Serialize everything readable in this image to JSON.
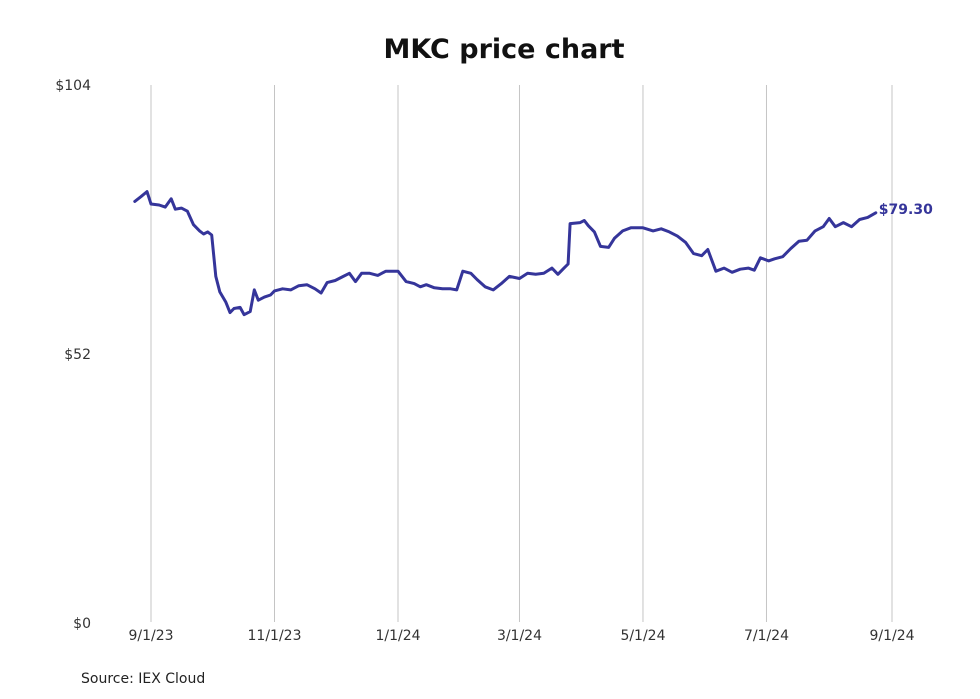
{
  "chart_data": {
    "type": "line",
    "title": "MKC price chart",
    "source": "Source: IEX Cloud",
    "y_ticks": [
      {
        "value": 104,
        "label": "$104"
      },
      {
        "value": 52,
        "label": "$52"
      },
      {
        "value": 0,
        "label": "$0"
      }
    ],
    "x_ticks": [
      {
        "date": "2023-09-01",
        "label": "9/1/23"
      },
      {
        "date": "2023-11-01",
        "label": "11/1/23"
      },
      {
        "date": "2024-01-01",
        "label": "1/1/24"
      },
      {
        "date": "2024-03-01",
        "label": "3/1/24"
      },
      {
        "date": "2024-05-01",
        "label": "5/1/24"
      },
      {
        "date": "2024-07-01",
        "label": "7/1/24"
      },
      {
        "date": "2024-09-01",
        "label": "9/1/24"
      }
    ],
    "ylim": [
      0,
      104
    ],
    "xlim": [
      "2023-08-23",
      "2024-09-03"
    ],
    "grid": "vertical",
    "line_color": "#35359a",
    "end_label": "$79.30",
    "series": [
      {
        "values": [
          [
            "2023-08-24",
            81.5
          ],
          [
            "2023-08-27",
            82.4
          ],
          [
            "2023-08-30",
            83.4
          ],
          [
            "2023-09-01",
            81.0
          ],
          [
            "2023-09-05",
            80.8
          ],
          [
            "2023-09-08",
            80.4
          ],
          [
            "2023-09-11",
            82.0
          ],
          [
            "2023-09-13",
            80.0
          ],
          [
            "2023-09-16",
            80.2
          ],
          [
            "2023-09-19",
            79.6
          ],
          [
            "2023-09-22",
            77.0
          ],
          [
            "2023-09-25",
            75.8
          ],
          [
            "2023-09-27",
            75.2
          ],
          [
            "2023-09-29",
            75.6
          ],
          [
            "2023-10-01",
            75.0
          ],
          [
            "2023-10-03",
            67.0
          ],
          [
            "2023-10-05",
            64.0
          ],
          [
            "2023-10-08",
            62.0
          ],
          [
            "2023-10-10",
            60.0
          ],
          [
            "2023-10-12",
            60.8
          ],
          [
            "2023-10-15",
            61.0
          ],
          [
            "2023-10-17",
            59.6
          ],
          [
            "2023-10-20",
            60.2
          ],
          [
            "2023-10-22",
            64.4
          ],
          [
            "2023-10-24",
            62.4
          ],
          [
            "2023-10-27",
            63.0
          ],
          [
            "2023-10-30",
            63.4
          ],
          [
            "2023-11-01",
            64.2
          ],
          [
            "2023-11-05",
            64.6
          ],
          [
            "2023-11-09",
            64.4
          ],
          [
            "2023-11-13",
            65.2
          ],
          [
            "2023-11-17",
            65.4
          ],
          [
            "2023-11-21",
            64.6
          ],
          [
            "2023-11-24",
            63.8
          ],
          [
            "2023-11-27",
            65.8
          ],
          [
            "2023-12-01",
            66.2
          ],
          [
            "2023-12-05",
            67.0
          ],
          [
            "2023-12-08",
            67.6
          ],
          [
            "2023-12-11",
            66.0
          ],
          [
            "2023-12-14",
            67.6
          ],
          [
            "2023-12-18",
            67.6
          ],
          [
            "2023-12-22",
            67.2
          ],
          [
            "2023-12-26",
            68.0
          ],
          [
            "2024-01-01",
            68.0
          ],
          [
            "2024-01-05",
            66.0
          ],
          [
            "2024-01-09",
            65.6
          ],
          [
            "2024-01-12",
            65.0
          ],
          [
            "2024-01-15",
            65.4
          ],
          [
            "2024-01-19",
            64.8
          ],
          [
            "2024-01-23",
            64.6
          ],
          [
            "2024-01-27",
            64.6
          ],
          [
            "2024-01-30",
            64.4
          ],
          [
            "2024-02-02",
            68.0
          ],
          [
            "2024-02-06",
            67.6
          ],
          [
            "2024-02-09",
            66.4
          ],
          [
            "2024-02-13",
            65.0
          ],
          [
            "2024-02-17",
            64.4
          ],
          [
            "2024-02-21",
            65.6
          ],
          [
            "2024-02-25",
            67.0
          ],
          [
            "2024-03-01",
            66.6
          ],
          [
            "2024-03-05",
            67.6
          ],
          [
            "2024-03-09",
            67.4
          ],
          [
            "2024-03-13",
            67.6
          ],
          [
            "2024-03-17",
            68.6
          ],
          [
            "2024-03-20",
            67.4
          ],
          [
            "2024-03-23",
            68.6
          ],
          [
            "2024-03-25",
            69.4
          ],
          [
            "2024-03-26",
            77.2
          ],
          [
            "2024-03-31",
            77.4
          ],
          [
            "2024-04-02",
            77.8
          ],
          [
            "2024-04-04",
            76.8
          ],
          [
            "2024-04-07",
            75.6
          ],
          [
            "2024-04-10",
            72.8
          ],
          [
            "2024-04-14",
            72.6
          ],
          [
            "2024-04-17",
            74.4
          ],
          [
            "2024-04-21",
            75.8
          ],
          [
            "2024-04-25",
            76.4
          ],
          [
            "2024-05-01",
            76.4
          ],
          [
            "2024-05-06",
            75.8
          ],
          [
            "2024-05-10",
            76.2
          ],
          [
            "2024-05-14",
            75.6
          ],
          [
            "2024-05-18",
            74.8
          ],
          [
            "2024-05-22",
            73.6
          ],
          [
            "2024-05-26",
            71.4
          ],
          [
            "2024-05-30",
            71.0
          ],
          [
            "2024-06-02",
            72.2
          ],
          [
            "2024-06-06",
            68.0
          ],
          [
            "2024-06-10",
            68.6
          ],
          [
            "2024-06-14",
            67.8
          ],
          [
            "2024-06-18",
            68.4
          ],
          [
            "2024-06-22",
            68.6
          ],
          [
            "2024-06-25",
            68.2
          ],
          [
            "2024-06-28",
            70.6
          ],
          [
            "2024-07-02",
            70.0
          ],
          [
            "2024-07-05",
            70.4
          ],
          [
            "2024-07-09",
            70.8
          ],
          [
            "2024-07-13",
            72.4
          ],
          [
            "2024-07-17",
            73.8
          ],
          [
            "2024-07-21",
            74.0
          ],
          [
            "2024-07-25",
            75.8
          ],
          [
            "2024-07-29",
            76.6
          ],
          [
            "2024-08-01",
            78.2
          ],
          [
            "2024-08-04",
            76.6
          ],
          [
            "2024-08-08",
            77.4
          ],
          [
            "2024-08-12",
            76.6
          ],
          [
            "2024-08-16",
            78.0
          ],
          [
            "2024-08-20",
            78.4
          ],
          [
            "2024-08-24",
            79.3
          ]
        ]
      }
    ]
  }
}
